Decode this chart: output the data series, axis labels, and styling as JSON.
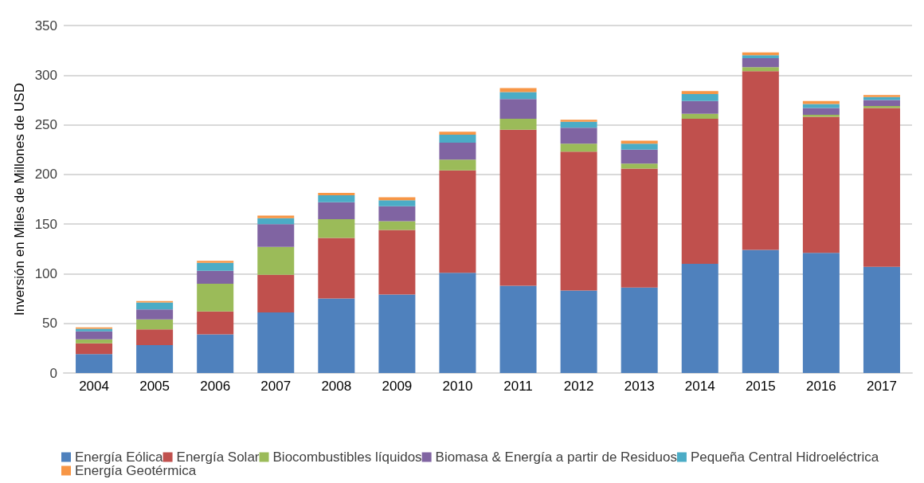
{
  "chart_data": {
    "type": "bar",
    "stacked": true,
    "ylabel": "Inversión en Miles de Millones de USD",
    "categories": [
      "2004",
      "2005",
      "2006",
      "2007",
      "2008",
      "2009",
      "2010",
      "2011",
      "2012",
      "2013",
      "2014",
      "2015",
      "2016",
      "2017"
    ],
    "series": [
      {
        "name": "Energía Eólica",
        "color": "#4f81bd",
        "values": [
          19,
          28,
          39,
          61,
          75,
          79,
          101,
          88,
          83,
          86,
          110,
          124,
          121,
          107
        ]
      },
      {
        "name": "Energía Solar",
        "color": "#c0504d",
        "values": [
          11,
          16,
          23,
          38,
          61,
          65,
          103,
          157,
          140,
          120,
          146,
          180,
          137,
          160
        ]
      },
      {
        "name": "Biocombustibles líquidos",
        "color": "#9bbb59",
        "values": [
          4,
          10,
          28,
          28,
          19,
          9,
          11,
          11,
          8,
          5,
          5,
          4,
          2,
          2
        ]
      },
      {
        "name": "Biomasa & Energía a partir de Residuos",
        "color": "#8064a2",
        "values": [
          8,
          10,
          13,
          23,
          17,
          15,
          17,
          20,
          16,
          14,
          13,
          9,
          7,
          6
        ]
      },
      {
        "name": "Pequeña Central Hidroeléctrica",
        "color": "#4bacc6",
        "values": [
          2.5,
          7,
          8,
          6,
          7,
          6,
          8,
          7,
          6,
          6,
          7,
          3,
          4,
          3
        ]
      },
      {
        "name": "Energía Geotérmica",
        "color": "#f79646",
        "values": [
          1.5,
          1.5,
          2,
          2.5,
          2.5,
          3,
          3,
          4,
          2,
          3,
          3,
          3,
          3,
          2
        ]
      }
    ],
    "ylim": [
      0,
      350
    ],
    "yticks": [
      0,
      50,
      100,
      150,
      200,
      250,
      300,
      350
    ],
    "grid": "y",
    "legend": "bottom"
  }
}
